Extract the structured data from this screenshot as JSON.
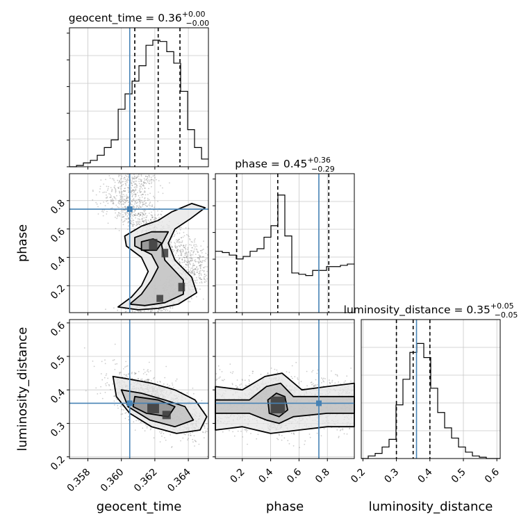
{
  "chart_data": {
    "type": "corner",
    "parameters": [
      "geocent_time",
      "phase",
      "luminosity_distance"
    ],
    "truth": {
      "geocent_time": 0.3605,
      "phase": 0.74,
      "luminosity_distance": 0.36
    },
    "colors": {
      "truth": "#4682b4",
      "hist": "#000000",
      "grid": "#c8c8c8",
      "scatter": "#6e6e6e"
    },
    "titles": [
      {
        "param": "geocent_time",
        "prefix": "geocent_time = ",
        "value": "0.36",
        "plus": "+0.00",
        "minus": "−0.00"
      },
      {
        "param": "phase",
        "prefix": "phase = ",
        "value": "0.45",
        "plus": "+0.36",
        "minus": "−0.29"
      },
      {
        "param": "luminosity_distance",
        "prefix": "luminosity_distance = ",
        "value": "0.35",
        "plus": "+0.05",
        "minus": "−0.05"
      }
    ],
    "axis_labels": {
      "x": [
        "geocent_time",
        "phase",
        "luminosity_distance"
      ],
      "y": [
        "phase",
        "luminosity_distance"
      ]
    },
    "ranges": {
      "geocent_time": [
        0.3569,
        0.3652
      ],
      "phase": [
        0.01,
        0.99
      ],
      "luminosity_distance": [
        0.195,
        0.61
      ]
    },
    "ticks": {
      "geocent_time": {
        "values": [
          0.358,
          0.36,
          0.362,
          0.364
        ],
        "labels": [
          "0.358",
          "0.360",
          "0.362",
          "0.364"
        ]
      },
      "phase_x": {
        "values": [
          0.2,
          0.4,
          0.6,
          0.8
        ],
        "labels": [
          "0.2",
          "0.4",
          "0.6",
          "0.8"
        ]
      },
      "phase_y": {
        "values": [
          0.2,
          0.4,
          0.6,
          0.8
        ],
        "labels": [
          "0.2",
          "0.4",
          "0.6",
          "0.8"
        ]
      },
      "luminosity_distance_x": {
        "values": [
          0.2,
          0.3,
          0.4,
          0.5,
          0.6
        ],
        "labels": [
          "0.2",
          "0.3",
          "0.4",
          "0.5",
          "0.6"
        ]
      },
      "luminosity_distance_y": {
        "values": [
          0.2,
          0.3,
          0.4,
          0.5,
          0.6
        ],
        "labels": [
          "0.2",
          "0.3",
          "0.4",
          "0.5",
          "0.6"
        ]
      }
    },
    "quantiles": {
      "geocent_time": [
        0.3608,
        0.3622,
        0.3635
      ],
      "phase": [
        0.16,
        0.45,
        0.81
      ],
      "luminosity_distance": [
        0.3,
        0.35,
        0.4
      ]
    },
    "histograms": {
      "geocent_time": {
        "edges": [
          0.3569,
          0.35732,
          0.35773,
          0.35815,
          0.35856,
          0.35898,
          0.35939,
          0.35981,
          0.36022,
          0.36064,
          0.36105,
          0.36147,
          0.36188,
          0.3623,
          0.36271,
          0.36313,
          0.36354,
          0.36396,
          0.36437,
          0.36479,
          0.3652
        ],
        "counts": [
          0.0,
          0.01,
          0.03,
          0.05,
          0.09,
          0.15,
          0.21,
          0.45,
          0.57,
          0.67,
          0.79,
          0.95,
          0.99,
          0.98,
          0.9,
          0.81,
          0.59,
          0.29,
          0.15,
          0.06
        ]
      },
      "phase": {
        "edges": [
          0.01,
          0.059,
          0.108,
          0.157,
          0.206,
          0.255,
          0.304,
          0.353,
          0.402,
          0.451,
          0.5,
          0.549,
          0.598,
          0.647,
          0.696,
          0.745,
          0.794,
          0.843,
          0.892,
          0.941,
          0.99
        ],
        "counts": [
          0.48,
          0.47,
          0.45,
          0.42,
          0.44,
          0.48,
          0.5,
          0.59,
          0.68,
          0.92,
          0.6,
          0.31,
          0.3,
          0.29,
          0.33,
          0.33,
          0.36,
          0.36,
          0.37,
          0.38
        ]
      },
      "luminosity_distance": {
        "edges": [
          0.195,
          0.21575,
          0.2365,
          0.25725,
          0.278,
          0.29875,
          0.3195,
          0.34025,
          0.361,
          0.38175,
          0.4025,
          0.42325,
          0.444,
          0.46475,
          0.4855,
          0.50625,
          0.527,
          0.54775,
          0.5685,
          0.58925,
          0.61
        ],
        "counts": [
          0.0,
          0.02,
          0.04,
          0.09,
          0.15,
          0.42,
          0.62,
          0.83,
          0.9,
          0.79,
          0.55,
          0.36,
          0.24,
          0.16,
          0.09,
          0.05,
          0.02,
          0.01,
          0.0,
          0.0
        ]
      }
    },
    "contours": {
      "phase_vs_geocent_time": {
        "levels": [
          [
            [
              0.3598,
              0.05
            ],
            [
              0.3606,
              0.12
            ],
            [
              0.3612,
              0.2
            ],
            [
              0.3616,
              0.3
            ],
            [
              0.3612,
              0.4
            ],
            [
              0.3603,
              0.48
            ],
            [
              0.3602,
              0.55
            ],
            [
              0.3612,
              0.62
            ],
            [
              0.3622,
              0.66
            ],
            [
              0.363,
              0.72
            ],
            [
              0.3642,
              0.78
            ],
            [
              0.365,
              0.75
            ],
            [
              0.3641,
              0.67
            ],
            [
              0.3632,
              0.6
            ],
            [
              0.3628,
              0.5
            ],
            [
              0.3632,
              0.38
            ],
            [
              0.3642,
              0.26
            ],
            [
              0.3645,
              0.15
            ],
            [
              0.3634,
              0.07
            ],
            [
              0.3622,
              0.04
            ],
            [
              0.361,
              0.03
            ]
          ],
          [
            [
              0.3605,
              0.07
            ],
            [
              0.3612,
              0.14
            ],
            [
              0.3618,
              0.24
            ],
            [
              0.3622,
              0.33
            ],
            [
              0.3618,
              0.42
            ],
            [
              0.3608,
              0.48
            ],
            [
              0.3608,
              0.54
            ],
            [
              0.3618,
              0.58
            ],
            [
              0.3628,
              0.58
            ],
            [
              0.3624,
              0.49
            ],
            [
              0.3626,
              0.38
            ],
            [
              0.3637,
              0.24
            ],
            [
              0.3637,
              0.14
            ],
            [
              0.3626,
              0.08
            ],
            [
              0.3614,
              0.06
            ]
          ],
          [
            [
              0.3612,
              0.45
            ],
            [
              0.3612,
              0.51
            ],
            [
              0.3619,
              0.53
            ],
            [
              0.3624,
              0.5
            ],
            [
              0.3621,
              0.45
            ]
          ]
        ],
        "density": [
          {
            "x": 0.3619,
            "y": 0.49,
            "w": 0.0005,
            "h": 0.08
          },
          {
            "x": 0.3626,
            "y": 0.43,
            "w": 0.0004,
            "h": 0.06
          },
          {
            "x": 0.3636,
            "y": 0.19,
            "w": 0.0004,
            "h": 0.06
          },
          {
            "x": 0.3623,
            "y": 0.11,
            "w": 0.0004,
            "h": 0.05
          }
        ]
      },
      "luminosity_distance_vs_geocent_time": {
        "levels": [
          [
            [
              0.3595,
              0.44
            ],
            [
              0.3607,
              0.43
            ],
            [
              0.3618,
              0.42
            ],
            [
              0.3632,
              0.4
            ],
            [
              0.3644,
              0.37
            ],
            [
              0.3651,
              0.32
            ],
            [
              0.3647,
              0.28
            ],
            [
              0.3633,
              0.27
            ],
            [
              0.3618,
              0.29
            ],
            [
              0.3605,
              0.33
            ],
            [
              0.3597,
              0.38
            ]
          ],
          [
            [
              0.36,
              0.4
            ],
            [
              0.3612,
              0.39
            ],
            [
              0.3626,
              0.37
            ],
            [
              0.3638,
              0.35
            ],
            [
              0.3643,
              0.31
            ],
            [
              0.3632,
              0.29
            ],
            [
              0.3617,
              0.31
            ],
            [
              0.3604,
              0.35
            ]
          ],
          [
            [
              0.3608,
              0.38
            ],
            [
              0.3622,
              0.37
            ],
            [
              0.3632,
              0.35
            ],
            [
              0.3628,
              0.32
            ],
            [
              0.3615,
              0.33
            ],
            [
              0.3607,
              0.35
            ]
          ]
        ],
        "density": [
          {
            "x": 0.3619,
            "y": 0.345,
            "w": 0.0007,
            "h": 0.03
          },
          {
            "x": 0.3627,
            "y": 0.325,
            "w": 0.0005,
            "h": 0.025
          }
        ]
      },
      "luminosity_distance_vs_phase": {
        "levels": [
          [
            [
              0.01,
              0.41
            ],
            [
              0.2,
              0.4
            ],
            [
              0.36,
              0.44
            ],
            [
              0.48,
              0.45
            ],
            [
              0.62,
              0.4
            ],
            [
              0.8,
              0.41
            ],
            [
              0.99,
              0.42
            ],
            [
              0.99,
              0.29
            ],
            [
              0.8,
              0.29
            ],
            [
              0.6,
              0.28
            ],
            [
              0.4,
              0.27
            ],
            [
              0.2,
              0.29
            ],
            [
              0.01,
              0.28
            ]
          ],
          [
            [
              0.01,
              0.37
            ],
            [
              0.25,
              0.37
            ],
            [
              0.37,
              0.41
            ],
            [
              0.47,
              0.42
            ],
            [
              0.56,
              0.38
            ],
            [
              0.8,
              0.38
            ],
            [
              0.99,
              0.38
            ],
            [
              0.99,
              0.33
            ],
            [
              0.8,
              0.33
            ],
            [
              0.56,
              0.32
            ],
            [
              0.46,
              0.3
            ],
            [
              0.37,
              0.31
            ],
            [
              0.25,
              0.33
            ],
            [
              0.01,
              0.33
            ]
          ],
          [
            [
              0.38,
              0.37
            ],
            [
              0.44,
              0.39
            ],
            [
              0.5,
              0.38
            ],
            [
              0.52,
              0.34
            ],
            [
              0.46,
              0.32
            ],
            [
              0.39,
              0.33
            ]
          ]
        ],
        "density": [
          {
            "x": 0.45,
            "y": 0.355,
            "w": 0.1,
            "h": 0.05
          }
        ]
      }
    }
  }
}
